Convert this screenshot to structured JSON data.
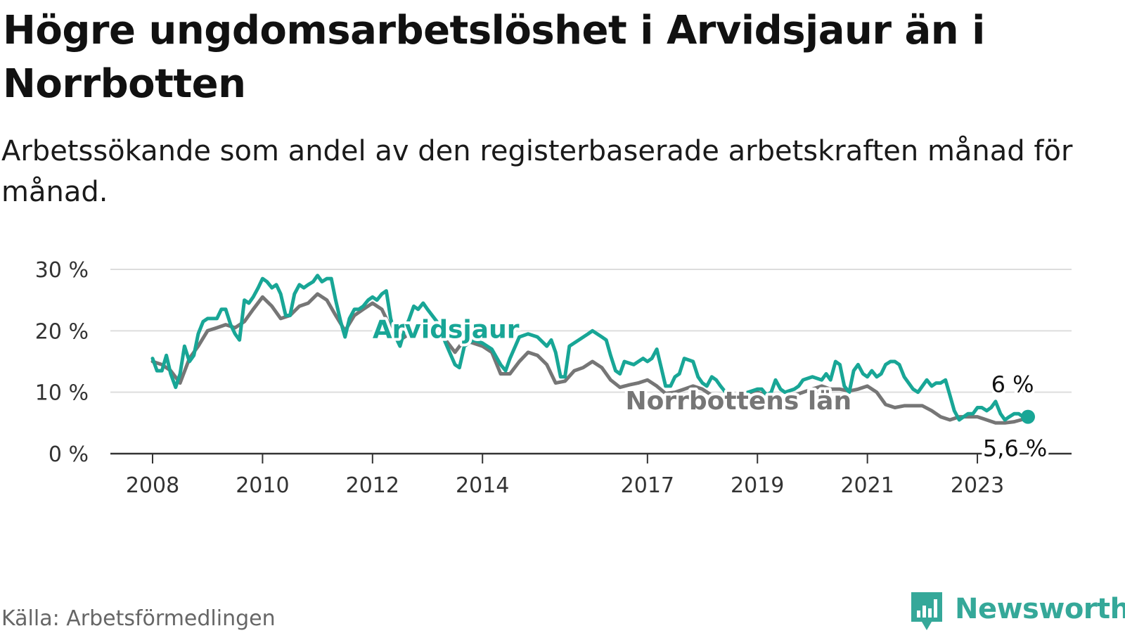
{
  "title": "Högre ungdomsarbetslöshet i Arvidsjaur än i Norrbotten",
  "subtitle": "Arbetssökande som andel av den registerbaserade arbetskraften månad för månad.",
  "source": "Källa: Arbetsförmedlingen",
  "brand": "Newsworthy",
  "colors": {
    "arvidsjaur": "#18a696",
    "norrbotten": "#767676",
    "grid": "#dddddd",
    "axis": "#333333",
    "brand": "#35a899"
  },
  "chart_data": {
    "type": "line",
    "title": "Högre ungdomsarbetslöshet i Arvidsjaur än i Norrbotten",
    "xlabel": "",
    "ylabel": "",
    "xlim": [
      2008,
      2023.92
    ],
    "ylim": [
      0,
      30
    ],
    "y_ticks": [
      0,
      10,
      20,
      30
    ],
    "y_tick_labels": [
      "0 %",
      "10 %",
      "20 %",
      "30 %"
    ],
    "x_ticks": [
      2008,
      2010,
      2012,
      2014,
      2017,
      2019,
      2021,
      2023
    ],
    "x_tick_labels": [
      "2008",
      "2010",
      "2012",
      "2014",
      "2017",
      "2019",
      "2021",
      "2023"
    ],
    "grid": true,
    "series": [
      {
        "name": "Norrbottens län",
        "label": "Norrbottens län",
        "end_label": "5,6 %",
        "end_value": 5.6,
        "points": [
          [
            2008.0,
            15.0
          ],
          [
            2008.17,
            14.5
          ],
          [
            2008.33,
            13.5
          ],
          [
            2008.5,
            11.5
          ],
          [
            2008.67,
            15.5
          ],
          [
            2008.83,
            17.5
          ],
          [
            2009.0,
            20.0
          ],
          [
            2009.17,
            20.5
          ],
          [
            2009.33,
            21.0
          ],
          [
            2009.5,
            20.5
          ],
          [
            2009.67,
            21.5
          ],
          [
            2009.83,
            23.5
          ],
          [
            2010.0,
            25.5
          ],
          [
            2010.17,
            24.0
          ],
          [
            2010.33,
            22.0
          ],
          [
            2010.5,
            22.5
          ],
          [
            2010.67,
            24.0
          ],
          [
            2010.83,
            24.5
          ],
          [
            2011.0,
            26.0
          ],
          [
            2011.17,
            25.0
          ],
          [
            2011.33,
            22.5
          ],
          [
            2011.5,
            20.0
          ],
          [
            2011.67,
            22.5
          ],
          [
            2011.83,
            23.5
          ],
          [
            2012.0,
            24.5
          ],
          [
            2012.17,
            23.5
          ],
          [
            2012.33,
            20.5
          ],
          [
            2012.5,
            18.5
          ],
          [
            2012.67,
            19.5
          ],
          [
            2012.83,
            20.5
          ],
          [
            2013.0,
            21.0
          ],
          [
            2013.17,
            20.5
          ],
          [
            2013.33,
            18.5
          ],
          [
            2013.5,
            16.5
          ],
          [
            2013.67,
            18.5
          ],
          [
            2013.83,
            18.0
          ],
          [
            2014.0,
            17.5
          ],
          [
            2014.17,
            16.5
          ],
          [
            2014.33,
            13.0
          ],
          [
            2014.5,
            13.0
          ],
          [
            2014.67,
            15.0
          ],
          [
            2014.83,
            16.5
          ],
          [
            2015.0,
            16.0
          ],
          [
            2015.17,
            14.5
          ],
          [
            2015.33,
            11.5
          ],
          [
            2015.5,
            11.8
          ],
          [
            2015.67,
            13.5
          ],
          [
            2015.83,
            14.0
          ],
          [
            2016.0,
            15.0
          ],
          [
            2016.17,
            14.0
          ],
          [
            2016.33,
            12.0
          ],
          [
            2016.5,
            10.8
          ],
          [
            2016.67,
            11.2
          ],
          [
            2016.83,
            11.5
          ],
          [
            2017.0,
            12.0
          ],
          [
            2017.17,
            11.0
          ],
          [
            2017.33,
            9.8
          ],
          [
            2017.5,
            10.0
          ],
          [
            2017.67,
            10.5
          ],
          [
            2017.83,
            11.0
          ],
          [
            2018.0,
            10.5
          ],
          [
            2018.17,
            9.5
          ],
          [
            2018.33,
            9.0
          ],
          [
            2018.5,
            9.0
          ],
          [
            2018.67,
            9.5
          ],
          [
            2018.83,
            10.0
          ],
          [
            2019.0,
            10.0
          ],
          [
            2019.17,
            9.5
          ],
          [
            2019.33,
            9.0
          ],
          [
            2019.5,
            9.0
          ],
          [
            2019.67,
            9.5
          ],
          [
            2019.83,
            10.0
          ],
          [
            2020.0,
            10.5
          ],
          [
            2020.17,
            11.0
          ],
          [
            2020.33,
            10.5
          ],
          [
            2020.5,
            10.5
          ],
          [
            2020.67,
            10.2
          ],
          [
            2020.83,
            10.5
          ],
          [
            2021.0,
            11.0
          ],
          [
            2021.17,
            10.0
          ],
          [
            2021.33,
            8.0
          ],
          [
            2021.5,
            7.5
          ],
          [
            2021.67,
            7.8
          ],
          [
            2021.83,
            7.8
          ],
          [
            2022.0,
            7.8
          ],
          [
            2022.17,
            7.0
          ],
          [
            2022.33,
            6.0
          ],
          [
            2022.5,
            5.5
          ],
          [
            2022.67,
            6.0
          ],
          [
            2022.83,
            6.0
          ],
          [
            2023.0,
            6.0
          ],
          [
            2023.17,
            5.5
          ],
          [
            2023.33,
            5.0
          ],
          [
            2023.5,
            5.0
          ],
          [
            2023.67,
            5.2
          ],
          [
            2023.83,
            5.6
          ]
        ]
      },
      {
        "name": "Arvidsjaur",
        "label": "Arvidsjaur",
        "end_label": "6 %",
        "end_value": 6.0,
        "points": [
          [
            2008.0,
            15.5
          ],
          [
            2008.08,
            13.5
          ],
          [
            2008.17,
            13.5
          ],
          [
            2008.25,
            16.0
          ],
          [
            2008.33,
            13.0
          ],
          [
            2008.42,
            10.8
          ],
          [
            2008.5,
            13.0
          ],
          [
            2008.58,
            17.5
          ],
          [
            2008.67,
            15.0
          ],
          [
            2008.75,
            16.0
          ],
          [
            2008.83,
            19.5
          ],
          [
            2008.92,
            21.5
          ],
          [
            2009.0,
            22.0
          ],
          [
            2009.17,
            22.0
          ],
          [
            2009.25,
            23.5
          ],
          [
            2009.33,
            23.5
          ],
          [
            2009.42,
            21.0
          ],
          [
            2009.5,
            19.5
          ],
          [
            2009.58,
            18.5
          ],
          [
            2009.67,
            25.0
          ],
          [
            2009.75,
            24.5
          ],
          [
            2009.83,
            25.5
          ],
          [
            2009.92,
            27.0
          ],
          [
            2010.0,
            28.5
          ],
          [
            2010.08,
            28.0
          ],
          [
            2010.17,
            27.0
          ],
          [
            2010.25,
            27.5
          ],
          [
            2010.33,
            26.0
          ],
          [
            2010.42,
            22.5
          ],
          [
            2010.5,
            22.5
          ],
          [
            2010.58,
            26.0
          ],
          [
            2010.67,
            27.5
          ],
          [
            2010.75,
            27.0
          ],
          [
            2010.83,
            27.5
          ],
          [
            2010.92,
            28.0
          ],
          [
            2011.0,
            29.0
          ],
          [
            2011.08,
            28.0
          ],
          [
            2011.17,
            28.5
          ],
          [
            2011.25,
            28.5
          ],
          [
            2011.33,
            25.0
          ],
          [
            2011.42,
            21.5
          ],
          [
            2011.5,
            19.0
          ],
          [
            2011.58,
            22.0
          ],
          [
            2011.67,
            23.5
          ],
          [
            2011.75,
            23.5
          ],
          [
            2011.83,
            24.0
          ],
          [
            2011.92,
            25.0
          ],
          [
            2012.0,
            25.5
          ],
          [
            2012.08,
            25.0
          ],
          [
            2012.17,
            26.0
          ],
          [
            2012.25,
            26.5
          ],
          [
            2012.33,
            22.0
          ],
          [
            2012.42,
            19.0
          ],
          [
            2012.5,
            17.5
          ],
          [
            2012.58,
            20.0
          ],
          [
            2012.67,
            22.0
          ],
          [
            2012.75,
            24.0
          ],
          [
            2012.83,
            23.5
          ],
          [
            2012.92,
            24.5
          ],
          [
            2013.0,
            23.5
          ],
          [
            2013.17,
            21.5
          ],
          [
            2013.33,
            18.0
          ],
          [
            2013.5,
            14.5
          ],
          [
            2013.58,
            14.0
          ],
          [
            2013.67,
            17.5
          ],
          [
            2013.83,
            18.5
          ],
          [
            2014.0,
            18.0
          ],
          [
            2014.17,
            17.0
          ],
          [
            2014.33,
            14.5
          ],
          [
            2014.42,
            13.5
          ],
          [
            2014.5,
            15.5
          ],
          [
            2014.67,
            19.0
          ],
          [
            2014.83,
            19.5
          ],
          [
            2015.0,
            19.0
          ],
          [
            2015.17,
            17.5
          ],
          [
            2015.25,
            18.5
          ],
          [
            2015.33,
            16.5
          ],
          [
            2015.42,
            12.5
          ],
          [
            2015.5,
            12.5
          ],
          [
            2015.58,
            17.5
          ],
          [
            2015.75,
            18.5
          ],
          [
            2015.92,
            19.5
          ],
          [
            2016.0,
            20.0
          ],
          [
            2016.17,
            19.0
          ],
          [
            2016.25,
            18.5
          ],
          [
            2016.33,
            16.0
          ],
          [
            2016.42,
            13.5
          ],
          [
            2016.5,
            13.0
          ],
          [
            2016.58,
            15.0
          ],
          [
            2016.75,
            14.5
          ],
          [
            2016.92,
            15.5
          ],
          [
            2017.0,
            15.0
          ],
          [
            2017.08,
            15.5
          ],
          [
            2017.17,
            17.0
          ],
          [
            2017.25,
            14.0
          ],
          [
            2017.33,
            11.0
          ],
          [
            2017.42,
            11.0
          ],
          [
            2017.5,
            12.5
          ],
          [
            2017.58,
            13.0
          ],
          [
            2017.67,
            15.5
          ],
          [
            2017.83,
            15.0
          ],
          [
            2017.92,
            12.5
          ],
          [
            2018.0,
            11.5
          ],
          [
            2018.08,
            11.0
          ],
          [
            2018.17,
            12.5
          ],
          [
            2018.25,
            12.0
          ],
          [
            2018.33,
            11.0
          ],
          [
            2018.42,
            10.0
          ],
          [
            2018.5,
            9.5
          ],
          [
            2018.67,
            9.5
          ],
          [
            2018.83,
            10.0
          ],
          [
            2019.0,
            10.5
          ],
          [
            2019.08,
            10.5
          ],
          [
            2019.17,
            9.5
          ],
          [
            2019.25,
            10.0
          ],
          [
            2019.33,
            12.0
          ],
          [
            2019.42,
            10.5
          ],
          [
            2019.5,
            10.0
          ],
          [
            2019.67,
            10.5
          ],
          [
            2019.75,
            11.0
          ],
          [
            2019.83,
            12.0
          ],
          [
            2020.0,
            12.5
          ],
          [
            2020.17,
            12.0
          ],
          [
            2020.25,
            13.0
          ],
          [
            2020.33,
            12.0
          ],
          [
            2020.42,
            15.0
          ],
          [
            2020.5,
            14.5
          ],
          [
            2020.58,
            11.0
          ],
          [
            2020.67,
            10.0
          ],
          [
            2020.75,
            13.5
          ],
          [
            2020.83,
            14.5
          ],
          [
            2020.92,
            13.0
          ],
          [
            2021.0,
            12.5
          ],
          [
            2021.08,
            13.5
          ],
          [
            2021.17,
            12.5
          ],
          [
            2021.25,
            13.0
          ],
          [
            2021.33,
            14.5
          ],
          [
            2021.42,
            15.0
          ],
          [
            2021.5,
            15.0
          ],
          [
            2021.58,
            14.5
          ],
          [
            2021.67,
            12.5
          ],
          [
            2021.75,
            11.5
          ],
          [
            2021.83,
            10.5
          ],
          [
            2021.92,
            10.0
          ],
          [
            2022.0,
            11.0
          ],
          [
            2022.08,
            12.0
          ],
          [
            2022.17,
            11.0
          ],
          [
            2022.25,
            11.5
          ],
          [
            2022.33,
            11.5
          ],
          [
            2022.42,
            12.0
          ],
          [
            2022.5,
            9.5
          ],
          [
            2022.58,
            7.0
          ],
          [
            2022.67,
            5.5
          ],
          [
            2022.75,
            6.0
          ],
          [
            2022.83,
            6.5
          ],
          [
            2022.92,
            6.5
          ],
          [
            2023.0,
            7.5
          ],
          [
            2023.08,
            7.5
          ],
          [
            2023.17,
            7.0
          ],
          [
            2023.25,
            7.5
          ],
          [
            2023.33,
            8.5
          ],
          [
            2023.42,
            6.5
          ],
          [
            2023.5,
            5.5
          ],
          [
            2023.58,
            6.0
          ],
          [
            2023.67,
            6.5
          ],
          [
            2023.75,
            6.5
          ],
          [
            2023.83,
            6.0
          ],
          [
            2023.92,
            6.0
          ]
        ]
      }
    ]
  }
}
